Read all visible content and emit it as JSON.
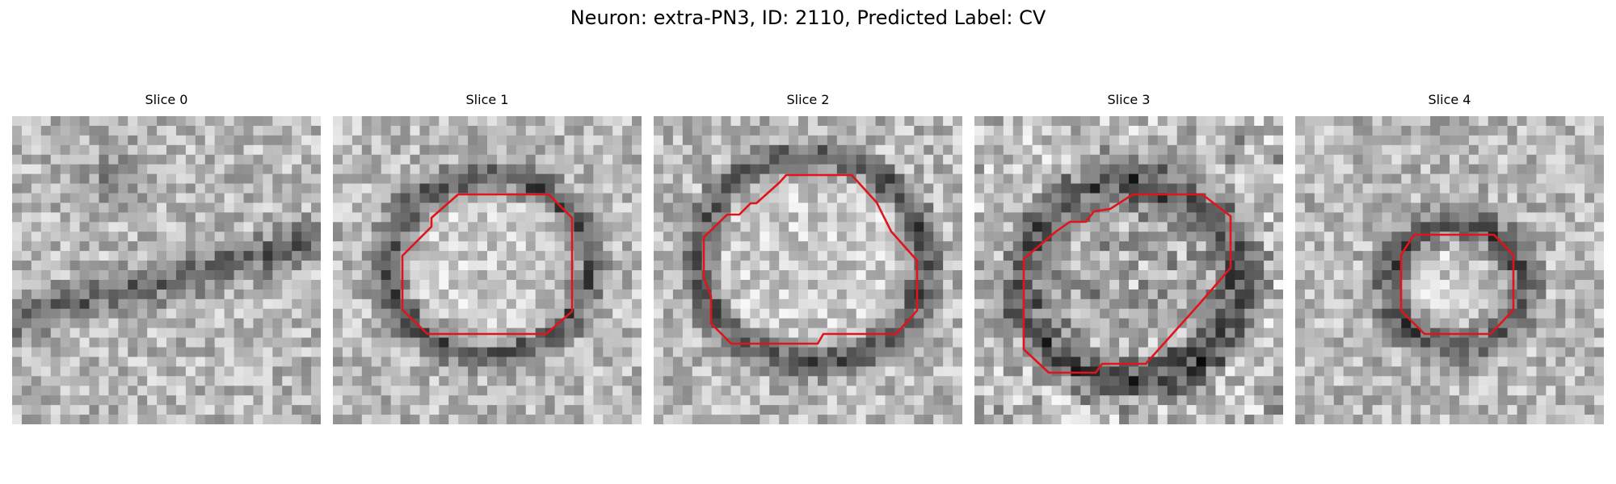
{
  "figure": {
    "title": "Neuron: extra-PN3, ID: 2110, Predicted Label: CV"
  },
  "colors": {
    "contour": "#e0141b",
    "background": "#ffffff"
  },
  "panels": [
    {
      "title": "Slice 0",
      "has_contour": false
    },
    {
      "title": "Slice 1",
      "has_contour": true
    },
    {
      "title": "Slice 2",
      "has_contour": true
    },
    {
      "title": "Slice 3",
      "has_contour": true
    },
    {
      "title": "Slice 4",
      "has_contour": true
    }
  ]
}
